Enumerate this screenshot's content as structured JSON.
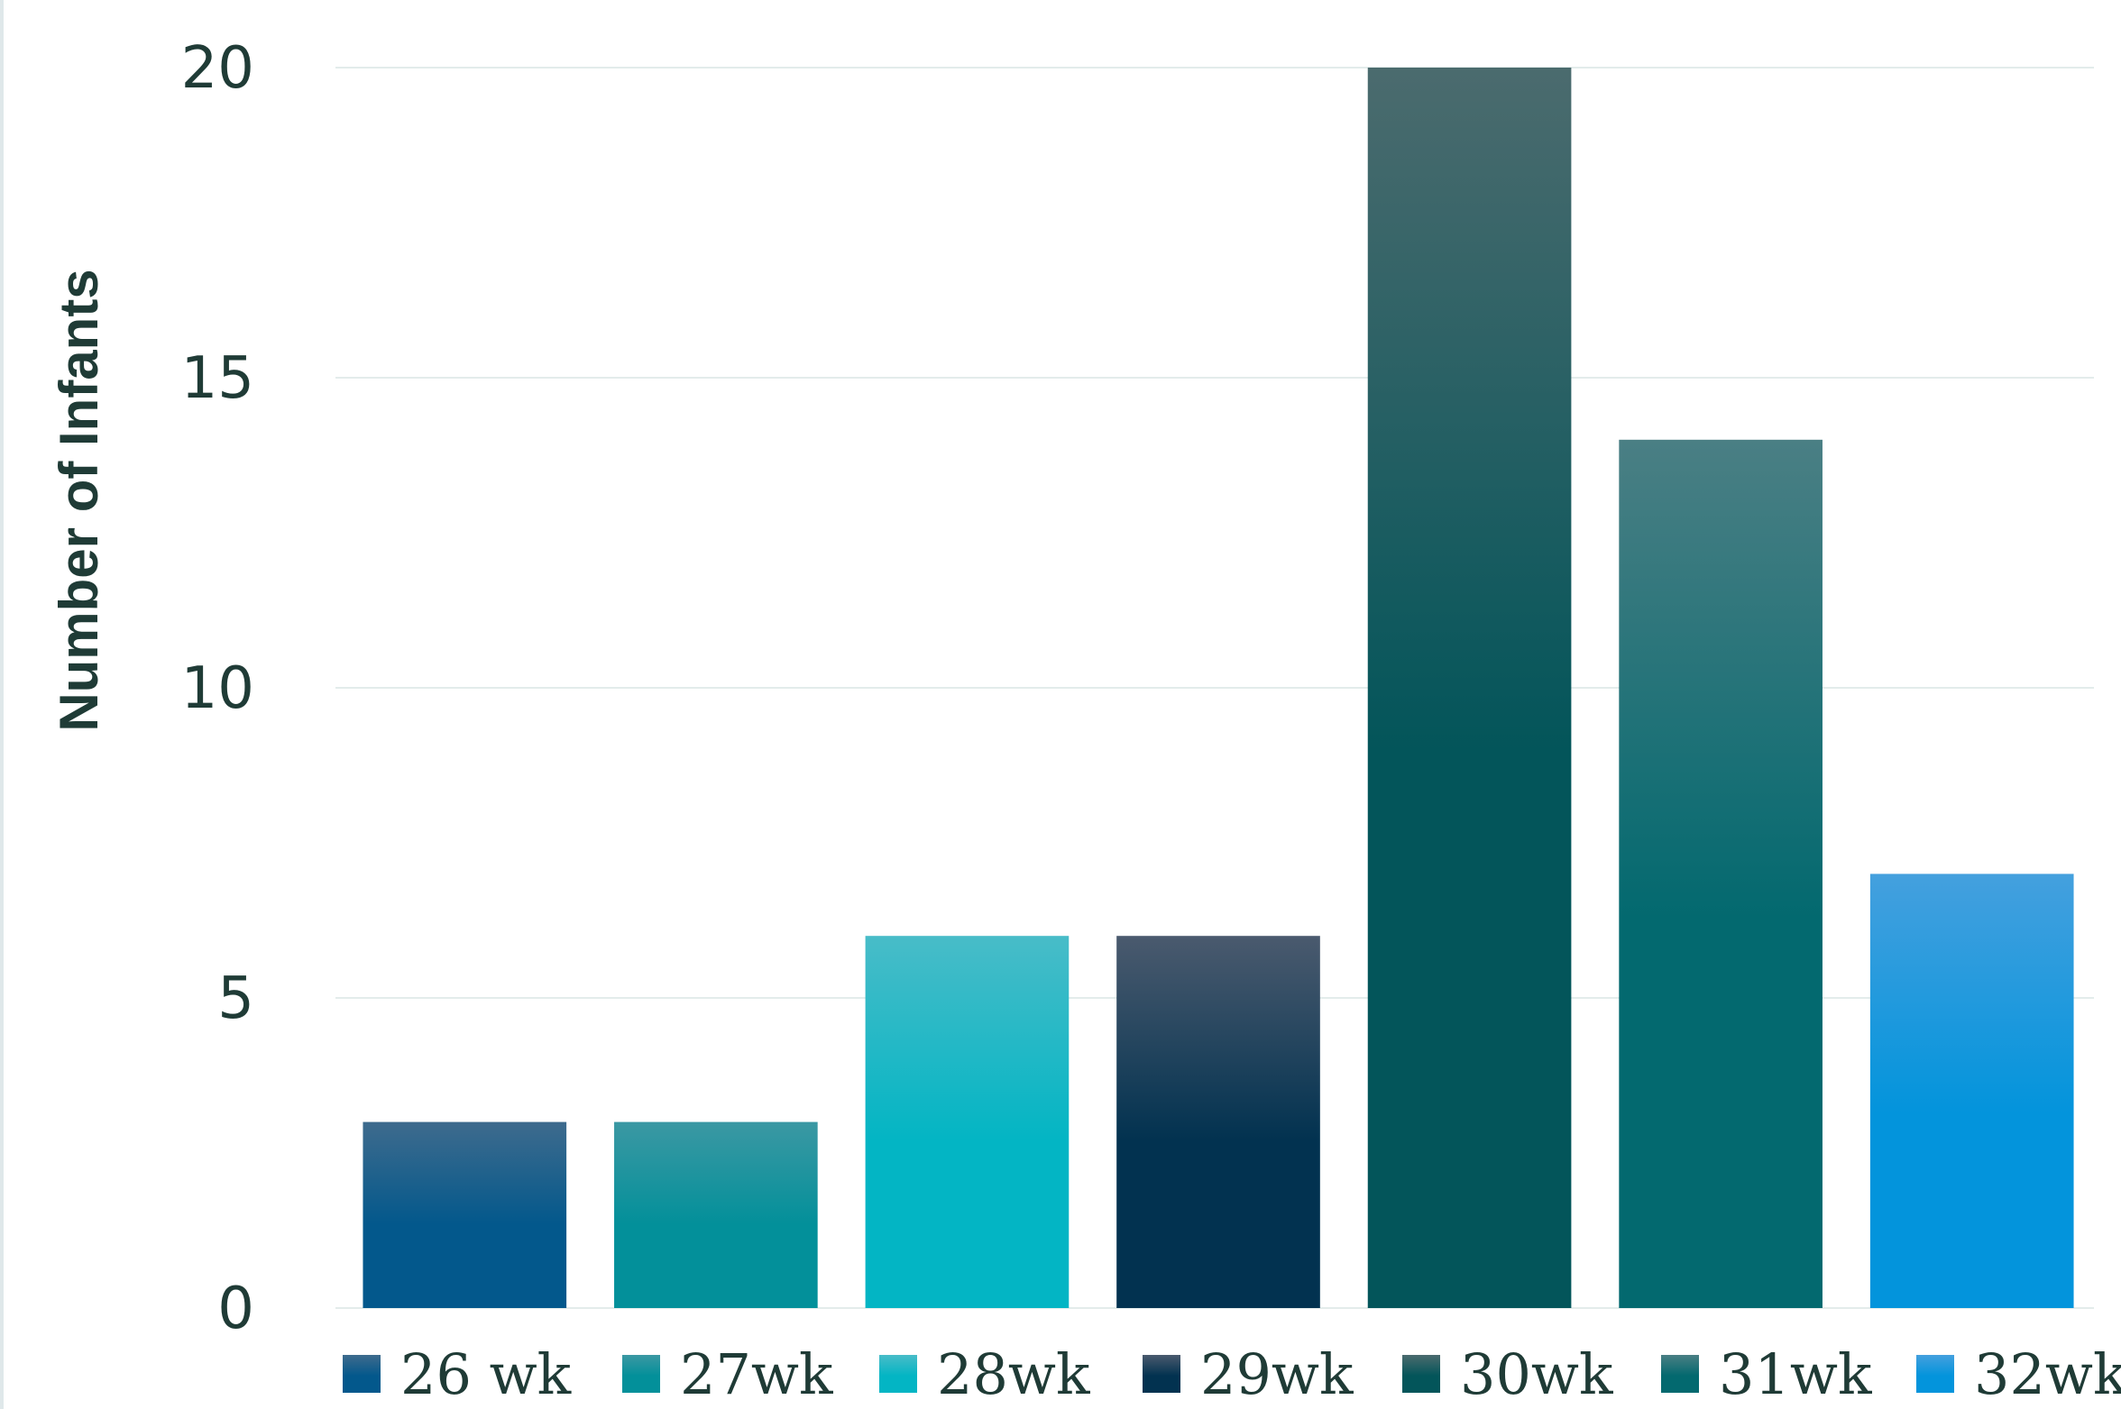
{
  "chart_data": {
    "type": "bar",
    "title": "",
    "ylabel": "Number of Infants",
    "xlabel": "",
    "ylim": [
      0,
      20
    ],
    "yticks": [
      0,
      5,
      10,
      15,
      20
    ],
    "grid": true,
    "legend_position": "bottom",
    "categories": [
      "26 wk",
      "27wk",
      "28wk",
      "29wk",
      "30wk",
      "31wk",
      "32wk"
    ],
    "values": [
      3,
      3,
      6,
      6,
      20,
      14,
      7
    ],
    "colors": [
      "#03588c",
      "#03909a",
      "#03b5c4",
      "#023250",
      "#03555a",
      "#03696f",
      "#0394dc"
    ],
    "top_colors": [
      "#3e6b8d",
      "#3b98a3",
      "#48bcc8",
      "#4a5a6e",
      "#4b6b6e",
      "#4a7f84",
      "#44a0de"
    ]
  }
}
